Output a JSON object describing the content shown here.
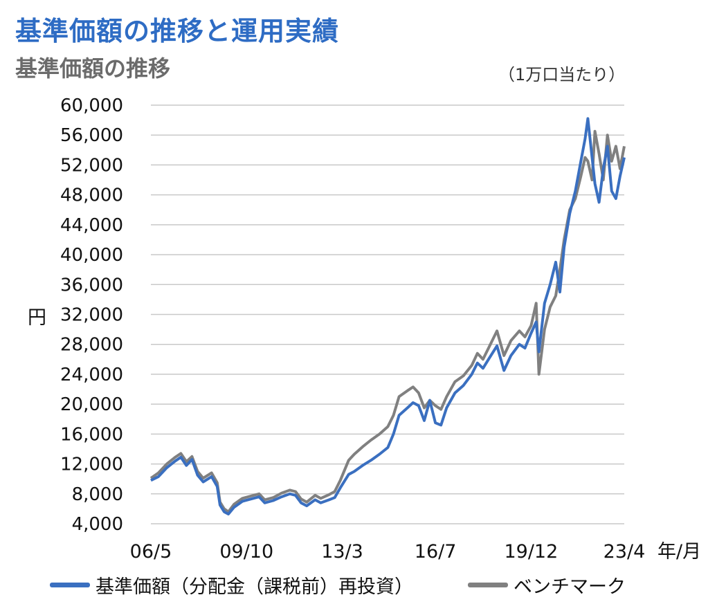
{
  "header": {
    "title": "基準価額の推移と運用実績",
    "subtitle": "基準価額の推移",
    "unit_note": "（1万口当たり）"
  },
  "colors": {
    "title_blue": "#2e6cc4",
    "subtitle_gray": "#6b6b6b",
    "nav_series": "#3a6fc0",
    "benchmark_series": "#808080",
    "grid": "#c8c8c8"
  },
  "chart_data": {
    "type": "line",
    "title": "基準価額の推移",
    "ylabel": "円",
    "xlabel": "年/月",
    "ylim": [
      4000,
      60000
    ],
    "y_ticks": [
      "60,000",
      "56,000",
      "52,000",
      "48,000",
      "44,000",
      "40,000",
      "36,000",
      "32,000",
      "28,000",
      "24,000",
      "20,000",
      "16,000",
      "12,000",
      "8,000",
      "4,000"
    ],
    "y_tick_values": [
      60000,
      56000,
      52000,
      48000,
      44000,
      40000,
      36000,
      32000,
      28000,
      24000,
      20000,
      16000,
      12000,
      8000,
      4000
    ],
    "x_range": [
      2006.33,
      2023.25
    ],
    "x_ticks": [
      {
        "label": "06/5",
        "t": 2006.33
      },
      {
        "label": "09/10",
        "t": 2009.75
      },
      {
        "label": "13/3",
        "t": 2013.17
      },
      {
        "label": "16/7",
        "t": 2016.5
      },
      {
        "label": "19/12",
        "t": 2019.92
      },
      {
        "label": "23/4",
        "t": 2023.25
      }
    ],
    "legend": [
      "基準価額（分配金（課税前）再投資）",
      "ベンチマーク"
    ],
    "series": [
      {
        "name": "基準価額（分配金（課税前）再投資）",
        "points": [
          [
            2006.33,
            9800
          ],
          [
            2006.6,
            10300
          ],
          [
            2006.9,
            11500
          ],
          [
            2007.2,
            12400
          ],
          [
            2007.4,
            12900
          ],
          [
            2007.6,
            11800
          ],
          [
            2007.8,
            12600
          ],
          [
            2008.0,
            10500
          ],
          [
            2008.2,
            9600
          ],
          [
            2008.5,
            10300
          ],
          [
            2008.7,
            9000
          ],
          [
            2008.8,
            6500
          ],
          [
            2008.95,
            5600
          ],
          [
            2009.1,
            5300
          ],
          [
            2009.3,
            6200
          ],
          [
            2009.6,
            7000
          ],
          [
            2009.9,
            7300
          ],
          [
            2010.2,
            7600
          ],
          [
            2010.4,
            6800
          ],
          [
            2010.7,
            7100
          ],
          [
            2011.0,
            7600
          ],
          [
            2011.3,
            8000
          ],
          [
            2011.5,
            7800
          ],
          [
            2011.7,
            6800
          ],
          [
            2011.9,
            6400
          ],
          [
            2012.2,
            7200
          ],
          [
            2012.4,
            6800
          ],
          [
            2012.7,
            7200
          ],
          [
            2012.9,
            7500
          ],
          [
            2013.1,
            8800
          ],
          [
            2013.4,
            10600
          ],
          [
            2013.6,
            11000
          ],
          [
            2013.9,
            11800
          ],
          [
            2014.2,
            12500
          ],
          [
            2014.5,
            13300
          ],
          [
            2014.8,
            14200
          ],
          [
            2015.0,
            16000
          ],
          [
            2015.2,
            18500
          ],
          [
            2015.5,
            19500
          ],
          [
            2015.7,
            20200
          ],
          [
            2015.9,
            19800
          ],
          [
            2016.1,
            17800
          ],
          [
            2016.3,
            20500
          ],
          [
            2016.5,
            17500
          ],
          [
            2016.7,
            17200
          ],
          [
            2016.9,
            19500
          ],
          [
            2017.2,
            21500
          ],
          [
            2017.5,
            22500
          ],
          [
            2017.8,
            24000
          ],
          [
            2018.0,
            25500
          ],
          [
            2018.2,
            24800
          ],
          [
            2018.4,
            26000
          ],
          [
            2018.7,
            27800
          ],
          [
            2018.95,
            24500
          ],
          [
            2019.2,
            26500
          ],
          [
            2019.5,
            28000
          ],
          [
            2019.7,
            27500
          ],
          [
            2019.92,
            29500
          ],
          [
            2020.1,
            31000
          ],
          [
            2020.2,
            27000
          ],
          [
            2020.4,
            33500
          ],
          [
            2020.6,
            36000
          ],
          [
            2020.8,
            39000
          ],
          [
            2020.95,
            35000
          ],
          [
            2021.1,
            41000
          ],
          [
            2021.3,
            45500
          ],
          [
            2021.5,
            48500
          ],
          [
            2021.7,
            52500
          ],
          [
            2021.85,
            55500
          ],
          [
            2021.95,
            58200
          ],
          [
            2022.1,
            53000
          ],
          [
            2022.2,
            49500
          ],
          [
            2022.35,
            47000
          ],
          [
            2022.5,
            51500
          ],
          [
            2022.65,
            54500
          ],
          [
            2022.8,
            48500
          ],
          [
            2022.95,
            47500
          ],
          [
            2023.1,
            50500
          ],
          [
            2023.25,
            53000
          ]
        ]
      },
      {
        "name": "ベンチマーク",
        "points": [
          [
            2006.33,
            10100
          ],
          [
            2006.6,
            10800
          ],
          [
            2006.9,
            12000
          ],
          [
            2007.2,
            12900
          ],
          [
            2007.4,
            13400
          ],
          [
            2007.6,
            12300
          ],
          [
            2007.8,
            13000
          ],
          [
            2008.0,
            11000
          ],
          [
            2008.2,
            10100
          ],
          [
            2008.5,
            10800
          ],
          [
            2008.7,
            9500
          ],
          [
            2008.8,
            6900
          ],
          [
            2008.95,
            6000
          ],
          [
            2009.1,
            5600
          ],
          [
            2009.3,
            6600
          ],
          [
            2009.6,
            7400
          ],
          [
            2009.9,
            7700
          ],
          [
            2010.2,
            8000
          ],
          [
            2010.4,
            7200
          ],
          [
            2010.7,
            7500
          ],
          [
            2011.0,
            8100
          ],
          [
            2011.3,
            8500
          ],
          [
            2011.5,
            8300
          ],
          [
            2011.7,
            7300
          ],
          [
            2011.9,
            6900
          ],
          [
            2012.2,
            7800
          ],
          [
            2012.4,
            7400
          ],
          [
            2012.7,
            7900
          ],
          [
            2012.9,
            8300
          ],
          [
            2013.1,
            9800
          ],
          [
            2013.4,
            12500
          ],
          [
            2013.6,
            13300
          ],
          [
            2013.9,
            14300
          ],
          [
            2014.2,
            15200
          ],
          [
            2014.5,
            16000
          ],
          [
            2014.8,
            17000
          ],
          [
            2015.0,
            18500
          ],
          [
            2015.2,
            21000
          ],
          [
            2015.5,
            21800
          ],
          [
            2015.7,
            22300
          ],
          [
            2015.9,
            21500
          ],
          [
            2016.1,
            19500
          ],
          [
            2016.3,
            20500
          ],
          [
            2016.5,
            19800
          ],
          [
            2016.7,
            19300
          ],
          [
            2016.9,
            21000
          ],
          [
            2017.2,
            23000
          ],
          [
            2017.5,
            23800
          ],
          [
            2017.8,
            25200
          ],
          [
            2018.0,
            26800
          ],
          [
            2018.2,
            26000
          ],
          [
            2018.4,
            27500
          ],
          [
            2018.7,
            29800
          ],
          [
            2018.95,
            26500
          ],
          [
            2019.2,
            28500
          ],
          [
            2019.5,
            29800
          ],
          [
            2019.7,
            29000
          ],
          [
            2019.92,
            30500
          ],
          [
            2020.1,
            33500
          ],
          [
            2020.2,
            24000
          ],
          [
            2020.4,
            30000
          ],
          [
            2020.6,
            33000
          ],
          [
            2020.8,
            34500
          ],
          [
            2020.95,
            38000
          ],
          [
            2021.1,
            42000
          ],
          [
            2021.3,
            46000
          ],
          [
            2021.5,
            47500
          ],
          [
            2021.7,
            50500
          ],
          [
            2021.85,
            53000
          ],
          [
            2021.95,
            52500
          ],
          [
            2022.1,
            50000
          ],
          [
            2022.2,
            56500
          ],
          [
            2022.35,
            53500
          ],
          [
            2022.5,
            50000
          ],
          [
            2022.65,
            56000
          ],
          [
            2022.8,
            52500
          ],
          [
            2022.95,
            54500
          ],
          [
            2023.1,
            51500
          ],
          [
            2023.25,
            54500
          ]
        ]
      }
    ]
  }
}
